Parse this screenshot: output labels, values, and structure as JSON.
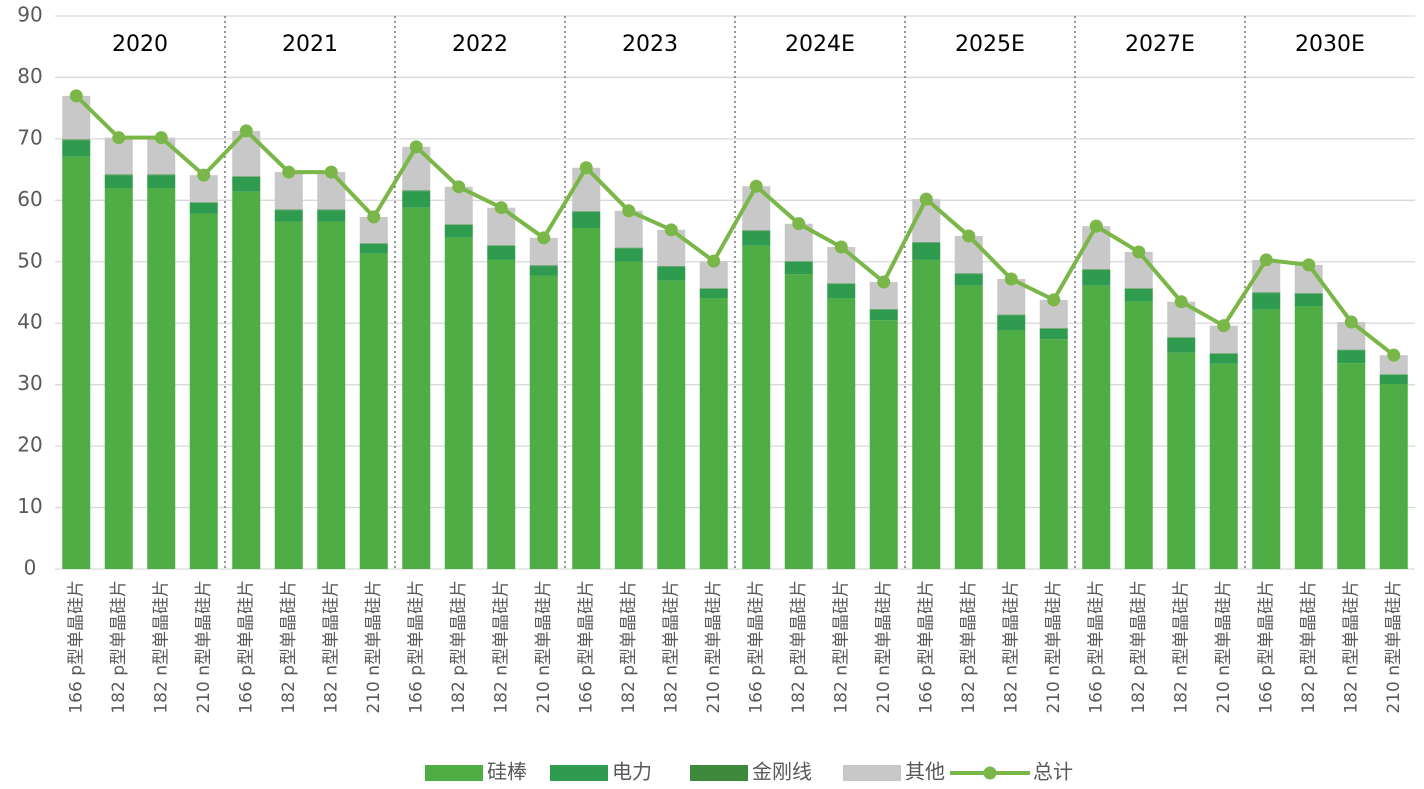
{
  "chart_data": {
    "type": "stacked-bar-line",
    "categories": [
      "166 p型单晶硅片",
      "182 p型单晶硅片",
      "182 n型单晶硅片",
      "210 n型单晶硅片",
      "166 p型单晶硅片",
      "182 p型单晶硅片",
      "182 n型单晶硅片",
      "210 n型单晶硅片",
      "166 p型单晶硅片",
      "182 p型单晶硅片",
      "182 n型单晶硅片",
      "210 n型单晶硅片",
      "166 p型单晶硅片",
      "182 p型单晶硅片",
      "182 n型单晶硅片",
      "210 n型单晶硅片",
      "166 p型单晶硅片",
      "182 p型单晶硅片",
      "182 n型单晶硅片",
      "210 n型单晶硅片",
      "166 p型单晶硅片",
      "182 p型单晶硅片",
      "182 n型单晶硅片",
      "210 n型单晶硅片",
      "166 p型单晶硅片",
      "182 p型单晶硅片",
      "182 n型单晶硅片",
      "210 n型单晶硅片",
      "166 p型单晶硅片",
      "182 p型单晶硅片",
      "182 n型单晶硅片",
      "210 n型单晶硅片"
    ],
    "groups": [
      "2020",
      "2021",
      "2022",
      "2023",
      "2024E",
      "2025E",
      "2027E",
      "2030E"
    ],
    "series": [
      {
        "name": "硅棒",
        "color": "#4ead44",
        "type": "bar",
        "values": [
          67.1,
          62.0,
          62.0,
          57.8,
          61.4,
          56.5,
          56.5,
          51.3,
          58.8,
          53.9,
          50.3,
          47.7,
          55.5,
          50.0,
          46.9,
          44.1,
          52.6,
          48.0,
          44.1,
          40.5,
          50.3,
          46.1,
          38.9,
          37.4,
          46.1,
          43.5,
          35.2,
          33.4,
          42.2,
          42.8,
          33.5,
          30.1
        ]
      },
      {
        "name": "电力",
        "color": "#2e9b4e",
        "type": "bar",
        "values": [
          2.7,
          2.1,
          2.1,
          1.8,
          2.4,
          1.9,
          1.9,
          1.6,
          2.7,
          2.1,
          2.3,
          1.6,
          2.6,
          2.2,
          2.3,
          1.5,
          2.4,
          2.0,
          2.3,
          1.7,
          2.8,
          1.9,
          2.4,
          1.7,
          2.6,
          2.1,
          2.4,
          1.6,
          2.7,
          2.0,
          2.1,
          1.5
        ]
      },
      {
        "name": "金刚线",
        "color": "#3d8a3d",
        "type": "bar",
        "values": [
          0.1,
          0.1,
          0.1,
          0.1,
          0.1,
          0.1,
          0.1,
          0.1,
          0.1,
          0.1,
          0.1,
          0.1,
          0.1,
          0.1,
          0.1,
          0.1,
          0.1,
          0.1,
          0.1,
          0.1,
          0.1,
          0.1,
          0.1,
          0.1,
          0.1,
          0.1,
          0.1,
          0.1,
          0.1,
          0.1,
          0.1,
          0.1
        ]
      },
      {
        "name": "其他",
        "color": "#c8c8c8",
        "type": "bar",
        "values": [
          7.1,
          6.0,
          6.0,
          4.4,
          7.4,
          6.1,
          6.1,
          4.3,
          7.1,
          6.1,
          6.1,
          4.5,
          7.1,
          6.0,
          5.9,
          4.4,
          7.2,
          6.1,
          5.9,
          4.4,
          7.0,
          6.1,
          5.8,
          4.6,
          7.0,
          5.9,
          5.8,
          4.5,
          5.3,
          4.6,
          4.5,
          3.1
        ]
      },
      {
        "name": "总计",
        "color": "#7ab648",
        "type": "line",
        "values": [
          77.0,
          70.2,
          70.2,
          64.1,
          71.3,
          64.6,
          64.6,
          57.3,
          68.7,
          62.2,
          58.8,
          53.9,
          65.3,
          58.3,
          55.2,
          50.1,
          62.3,
          56.2,
          52.4,
          46.7,
          60.2,
          54.2,
          47.2,
          43.8,
          55.8,
          51.6,
          43.5,
          39.6,
          50.3,
          49.5,
          40.2,
          34.8
        ]
      }
    ],
    "ylim": [
      0,
      90
    ],
    "yticks": [
      0,
      10,
      20,
      30,
      40,
      50,
      60,
      70,
      80,
      90
    ],
    "grid": true,
    "legend": "bottom"
  }
}
